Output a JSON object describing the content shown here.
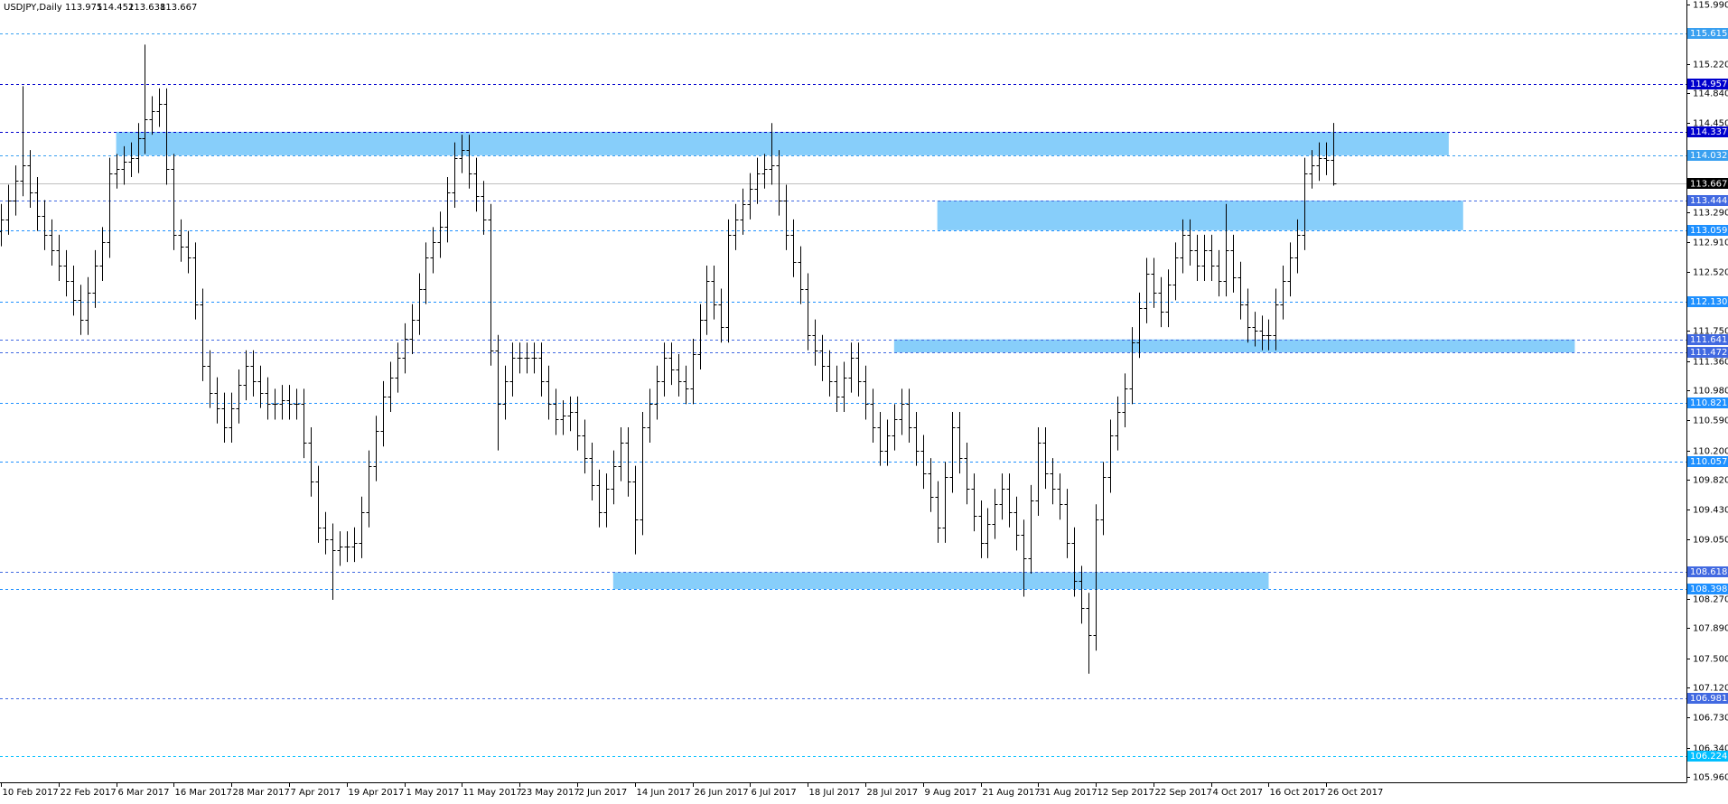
{
  "chart_data": {
    "type": "ohlc",
    "title": "USDJPY,Daily",
    "color": "#000000",
    "xlim": [
      0,
      234
    ],
    "ylim": [
      105.96,
      115.99
    ],
    "xticks": [
      {
        "value": 0,
        "label": "10 Feb 2017"
      },
      {
        "value": 8,
        "label": "22 Feb 2017"
      },
      {
        "value": 16,
        "label": "6 Mar 2017"
      },
      {
        "value": 24,
        "label": "16 Mar 2017"
      },
      {
        "value": 32,
        "label": "28 Mar 2017"
      },
      {
        "value": 40,
        "label": "7 Apr 2017"
      },
      {
        "value": 48,
        "label": "19 Apr 2017"
      },
      {
        "value": 56,
        "label": "1 May 2017"
      },
      {
        "value": 64,
        "label": "11 May 2017"
      },
      {
        "value": 72,
        "label": "23 May 2017"
      },
      {
        "value": 80,
        "label": "2 Jun 2017"
      },
      {
        "value": 88,
        "label": "14 Jun 2017"
      },
      {
        "value": 96,
        "label": "26 Jun 2017"
      },
      {
        "value": 104,
        "label": "6 Jul 2017"
      },
      {
        "value": 112,
        "label": "18 Jul 2017"
      },
      {
        "value": 120,
        "label": "28 Jul 2017"
      },
      {
        "value": 128,
        "label": "9 Aug 2017"
      },
      {
        "value": 136,
        "label": "21 Aug 2017"
      },
      {
        "value": 144,
        "label": "31 Aug 2017"
      },
      {
        "value": 152,
        "label": "12 Sep 2017"
      },
      {
        "value": 160,
        "label": "22 Sep 2017"
      },
      {
        "value": 168,
        "label": "4 Oct 2017"
      },
      {
        "value": 176,
        "label": "16 Oct 2017"
      },
      {
        "value": 184,
        "label": "26 Oct 2017"
      }
    ],
    "yticks": [
      {
        "value": 115.99,
        "label": "115.990"
      },
      {
        "value": 115.22,
        "label": "115.220"
      },
      {
        "value": 114.84,
        "label": "114.840"
      },
      {
        "value": 114.45,
        "label": "114.450"
      },
      {
        "value": 113.29,
        "label": "113.290"
      },
      {
        "value": 112.91,
        "label": "112.910"
      },
      {
        "value": 112.52,
        "label": "112.520"
      },
      {
        "value": 111.75,
        "label": "111.750"
      },
      {
        "value": 111.36,
        "label": "111.360"
      },
      {
        "value": 110.98,
        "label": "110.980"
      },
      {
        "value": 110.59,
        "label": "110.590"
      },
      {
        "value": 110.2,
        "label": "110.200"
      },
      {
        "value": 109.82,
        "label": "109.820"
      },
      {
        "value": 109.43,
        "label": "109.430"
      },
      {
        "value": 109.05,
        "label": "109.050"
      },
      {
        "value": 108.27,
        "label": "108.270"
      },
      {
        "value": 107.89,
        "label": "107.890"
      },
      {
        "value": 107.5,
        "label": "107.500"
      },
      {
        "value": 107.12,
        "label": "107.120"
      },
      {
        "value": 106.73,
        "label": "106.730"
      },
      {
        "value": 106.34,
        "label": "106.340"
      },
      {
        "value": 105.96,
        "label": "105.960"
      }
    ],
    "levels": [
      {
        "value": 115.615,
        "color": "#3aa0f0"
      },
      {
        "value": 114.957,
        "color": "#0000cd"
      },
      {
        "value": 114.337,
        "color": "#0000cd"
      },
      {
        "value": 114.032,
        "color": "#3aa0f0"
      },
      {
        "value": 113.444,
        "color": "#4169e1"
      },
      {
        "value": 113.059,
        "color": "#1e90ff"
      },
      {
        "value": 112.13,
        "label": "112.130",
        "color": "#1e90ff"
      },
      {
        "value": 111.641,
        "color": "#4169e1"
      },
      {
        "value": 111.472,
        "color": "#4169e1"
      },
      {
        "value": 110.821,
        "color": "#1e90ff"
      },
      {
        "value": 110.057,
        "color": "#1e90ff"
      },
      {
        "value": 108.618,
        "color": "#4169e1"
      },
      {
        "value": 108.398,
        "color": "#1e90ff"
      },
      {
        "value": 106.981,
        "color": "#4169e1"
      },
      {
        "value": 106.224,
        "color": "#00bfff"
      }
    ],
    "zones": [
      {
        "x": [
          16,
          201
        ],
        "y": [
          114.032,
          114.337
        ],
        "color": "#87cefa"
      },
      {
        "x": [
          130,
          203
        ],
        "y": [
          113.059,
          113.444
        ],
        "color": "#87cefa"
      },
      {
        "x": [
          124,
          218.5
        ],
        "y": [
          111.472,
          111.641
        ],
        "color": "#87cefa"
      },
      {
        "x": [
          85,
          176
        ],
        "y": [
          108.398,
          108.618
        ],
        "color": "#87cefa"
      }
    ],
    "open": [
      113.05,
      113.2,
      113.45,
      113.7,
      113.9,
      113.55,
      113.25,
      113.0,
      112.8,
      112.6,
      112.4,
      112.15,
      111.9,
      112.25,
      112.6,
      112.9,
      113.8,
      113.85,
      113.95,
      114.0,
      114.25,
      114.5,
      114.6,
      114.7,
      113.85,
      113.0,
      112.85,
      112.7,
      112.1,
      111.3,
      110.95,
      110.75,
      110.5,
      110.75,
      111.05,
      111.3,
      111.1,
      110.95,
      110.8,
      110.8,
      110.85,
      110.8,
      110.8,
      110.3,
      109.8,
      109.2,
      109.05,
      108.9,
      108.95,
      108.95,
      109.0,
      109.4,
      110.0,
      110.45,
      110.9,
      111.15,
      111.4,
      111.65,
      111.9,
      112.3,
      112.7,
      112.9,
      113.1,
      113.55,
      114.0,
      114.1,
      113.8,
      113.5,
      113.2,
      111.5,
      110.8,
      111.1,
      111.4,
      111.4,
      111.4,
      111.4,
      111.1,
      110.8,
      110.6,
      110.65,
      110.7,
      110.4,
      110.1,
      109.75,
      109.4,
      109.7,
      110.0,
      110.3,
      109.8,
      109.3,
      110.5,
      110.8,
      111.1,
      111.4,
      111.25,
      111.1,
      111.0,
      111.45,
      111.9,
      112.4,
      112.1,
      111.8,
      113.0,
      113.2,
      113.4,
      113.6,
      113.8,
      113.85,
      113.9,
      113.45,
      113.0,
      112.65,
      112.3,
      111.7,
      111.5,
      111.3,
      111.1,
      110.9,
      111.15,
      111.4,
      111.1,
      110.8,
      110.5,
      110.2,
      110.4,
      110.6,
      110.8,
      110.5,
      110.2,
      109.9,
      109.6,
      109.2,
      109.85,
      110.5,
      110.1,
      109.7,
      109.35,
      109.0,
      109.25,
      109.5,
      109.7,
      109.4,
      109.1,
      108.8,
      109.55,
      110.3,
      109.9,
      109.7,
      109.5,
      109.0,
      108.5,
      108.15,
      107.8,
      109.3,
      109.85,
      110.4,
      110.7,
      111.0,
      111.6,
      112.05,
      112.5,
      112.25,
      112.0,
      112.35,
      112.7,
      113.0,
      112.8,
      112.6,
      112.8,
      112.6,
      112.4,
      112.8,
      112.45,
      112.1,
      111.8,
      111.75,
      111.7,
      111.7,
      112.1,
      112.4,
      112.7,
      113.0,
      113.8,
      113.9,
      114.0,
      113.975
    ],
    "high": [
      113.4,
      113.65,
      113.9,
      114.93,
      114.1,
      113.75,
      113.45,
      113.2,
      113.0,
      112.8,
      112.6,
      112.35,
      112.45,
      112.8,
      113.1,
      114.0,
      114.05,
      114.15,
      114.2,
      114.45,
      115.47,
      114.8,
      114.9,
      114.9,
      114.05,
      113.2,
      113.05,
      112.9,
      112.3,
      111.5,
      111.15,
      110.95,
      110.95,
      111.25,
      111.5,
      111.5,
      111.3,
      111.15,
      111.0,
      111.05,
      111.05,
      111.0,
      111.0,
      110.5,
      110.0,
      109.4,
      109.25,
      109.15,
      109.15,
      109.2,
      109.6,
      110.2,
      110.65,
      111.1,
      111.35,
      111.6,
      111.85,
      112.1,
      112.5,
      112.9,
      113.1,
      113.3,
      113.75,
      114.2,
      114.3,
      114.3,
      114.0,
      113.7,
      113.4,
      111.7,
      111.3,
      111.6,
      111.6,
      111.6,
      111.6,
      111.6,
      111.3,
      111.0,
      110.85,
      110.9,
      110.9,
      110.6,
      110.3,
      109.95,
      109.9,
      110.2,
      110.5,
      110.5,
      110.0,
      110.7,
      111.0,
      111.3,
      111.6,
      111.6,
      111.45,
      111.3,
      111.65,
      112.1,
      112.6,
      112.6,
      112.3,
      113.2,
      113.4,
      113.6,
      113.8,
      114.0,
      114.05,
      114.45,
      114.1,
      113.65,
      113.2,
      112.85,
      112.5,
      111.9,
      111.7,
      111.5,
      111.3,
      111.35,
      111.6,
      111.6,
      111.3,
      111.0,
      110.7,
      110.6,
      110.8,
      111.0,
      111.0,
      110.7,
      110.4,
      110.1,
      109.8,
      110.05,
      110.7,
      110.7,
      110.3,
      109.9,
      109.55,
      109.45,
      109.7,
      109.9,
      109.9,
      109.6,
      109.3,
      109.75,
      110.5,
      110.5,
      110.1,
      109.9,
      109.7,
      109.2,
      108.7,
      108.35,
      109.5,
      110.05,
      110.6,
      110.9,
      111.2,
      111.8,
      112.25,
      112.7,
      112.7,
      112.45,
      112.55,
      112.9,
      113.2,
      113.2,
      113.0,
      113.0,
      113.0,
      112.8,
      113.4,
      113.0,
      112.65,
      112.3,
      112.0,
      111.95,
      111.9,
      112.3,
      112.6,
      112.9,
      113.2,
      114.0,
      114.1,
      114.2,
      114.2,
      114.452
    ],
    "low": [
      112.85,
      113.0,
      113.25,
      113.5,
      113.35,
      113.05,
      112.8,
      112.6,
      112.4,
      112.2,
      111.95,
      111.7,
      111.7,
      112.05,
      112.4,
      112.7,
      113.6,
      113.65,
      113.75,
      113.8,
      114.05,
      114.3,
      114.4,
      113.65,
      112.8,
      112.65,
      112.5,
      111.9,
      111.1,
      110.75,
      110.55,
      110.3,
      110.3,
      110.55,
      110.85,
      110.9,
      110.75,
      110.6,
      110.6,
      110.6,
      110.6,
      110.6,
      110.1,
      109.6,
      109.0,
      108.85,
      108.26,
      108.7,
      108.75,
      108.75,
      108.8,
      109.2,
      109.8,
      110.25,
      110.7,
      110.95,
      111.2,
      111.45,
      111.7,
      112.1,
      112.5,
      112.7,
      112.9,
      113.35,
      113.8,
      113.6,
      113.3,
      113.0,
      111.3,
      110.2,
      110.6,
      110.9,
      111.2,
      111.2,
      111.2,
      110.9,
      110.6,
      110.4,
      110.4,
      110.45,
      110.2,
      109.9,
      109.55,
      109.2,
      109.2,
      109.5,
      109.8,
      109.6,
      108.85,
      109.1,
      110.3,
      110.6,
      110.9,
      111.05,
      110.9,
      110.8,
      110.8,
      111.25,
      111.7,
      111.9,
      111.6,
      111.6,
      112.8,
      113.0,
      113.2,
      113.4,
      113.6,
      113.65,
      113.25,
      112.8,
      112.45,
      112.1,
      111.5,
      111.3,
      111.1,
      110.9,
      110.7,
      110.7,
      110.95,
      110.9,
      110.6,
      110.3,
      110.0,
      110.0,
      110.2,
      110.4,
      110.3,
      110.0,
      109.7,
      109.4,
      109.0,
      109.0,
      109.65,
      109.9,
      109.5,
      109.15,
      108.8,
      108.8,
      109.05,
      109.3,
      109.2,
      108.9,
      108.3,
      108.6,
      109.35,
      109.7,
      109.5,
      109.3,
      108.8,
      108.3,
      107.95,
      107.3,
      107.6,
      109.1,
      109.65,
      110.2,
      110.5,
      110.8,
      111.4,
      111.85,
      112.05,
      111.8,
      111.8,
      112.15,
      112.5,
      112.6,
      112.4,
      112.4,
      112.4,
      112.2,
      112.2,
      112.25,
      111.9,
      111.6,
      111.55,
      111.5,
      111.5,
      111.5,
      111.9,
      112.2,
      112.5,
      112.8,
      113.6,
      113.7,
      113.775,
      113.638
    ],
    "close": [
      113.2,
      113.45,
      113.7,
      113.9,
      113.55,
      113.25,
      113.0,
      112.8,
      112.6,
      112.4,
      112.15,
      111.9,
      112.25,
      112.6,
      112.9,
      113.8,
      113.85,
      113.95,
      114.0,
      114.25,
      114.5,
      114.6,
      114.7,
      113.85,
      113.0,
      112.85,
      112.7,
      112.1,
      111.3,
      110.95,
      110.75,
      110.5,
      110.75,
      111.05,
      111.3,
      111.1,
      110.95,
      110.8,
      110.8,
      110.85,
      110.8,
      110.8,
      110.3,
      109.8,
      109.2,
      109.05,
      108.9,
      108.95,
      108.95,
      109.0,
      109.4,
      110.0,
      110.45,
      110.9,
      111.15,
      111.4,
      111.65,
      111.9,
      112.3,
      112.7,
      112.9,
      113.1,
      113.55,
      114.0,
      114.1,
      113.8,
      113.5,
      113.2,
      111.5,
      110.8,
      111.1,
      111.4,
      111.4,
      111.4,
      111.4,
      111.1,
      110.8,
      110.6,
      110.65,
      110.7,
      110.4,
      110.1,
      109.75,
      109.4,
      109.7,
      110.0,
      110.3,
      109.8,
      109.3,
      110.5,
      110.8,
      111.1,
      111.4,
      111.25,
      111.1,
      111.0,
      111.45,
      111.9,
      112.4,
      112.1,
      111.8,
      113.0,
      113.2,
      113.4,
      113.6,
      113.8,
      113.85,
      113.9,
      113.45,
      113.0,
      112.65,
      112.3,
      111.7,
      111.5,
      111.3,
      111.1,
      110.9,
      111.15,
      111.4,
      111.1,
      110.8,
      110.5,
      110.2,
      110.4,
      110.6,
      110.8,
      110.5,
      110.2,
      109.9,
      109.6,
      109.2,
      109.85,
      110.5,
      110.1,
      109.7,
      109.35,
      109.0,
      109.25,
      109.5,
      109.7,
      109.4,
      109.1,
      108.8,
      109.55,
      110.3,
      109.9,
      109.7,
      109.5,
      109.0,
      108.5,
      108.15,
      107.8,
      109.3,
      109.85,
      110.4,
      110.7,
      111.0,
      111.6,
      112.05,
      112.5,
      112.25,
      112.0,
      112.35,
      112.7,
      113.0,
      112.8,
      112.6,
      112.8,
      112.6,
      112.4,
      112.8,
      112.45,
      112.1,
      111.8,
      111.75,
      111.7,
      111.7,
      112.1,
      112.4,
      112.7,
      113.0,
      113.8,
      113.9,
      114.0,
      113.975,
      113.667
    ]
  }
}
